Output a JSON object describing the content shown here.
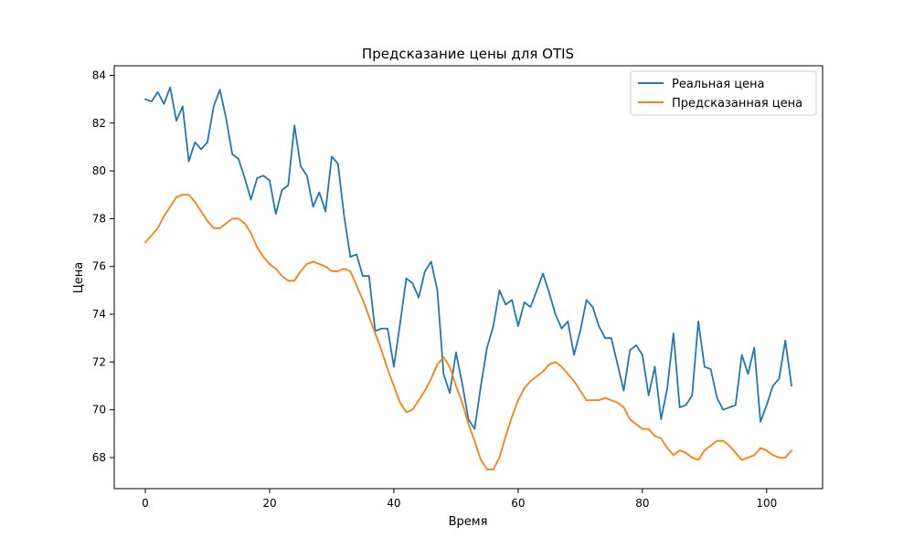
{
  "chart_data": {
    "type": "line",
    "title": "Предсказание цены для OTIS",
    "xlabel": "Время",
    "ylabel": "Цена",
    "xlim": [
      -5,
      109
    ],
    "ylim": [
      66.7,
      84.4
    ],
    "xticks": [
      0,
      20,
      40,
      60,
      80,
      100
    ],
    "yticks": [
      68,
      70,
      72,
      74,
      76,
      78,
      80,
      82,
      84
    ],
    "grid": false,
    "legend_position": "top-right",
    "series": [
      {
        "name": "Реальная цена",
        "color": "#1f77b4",
        "values": [
          83.0,
          82.9,
          83.3,
          82.8,
          83.5,
          82.1,
          82.7,
          80.4,
          81.2,
          80.9,
          81.2,
          82.7,
          83.4,
          82.2,
          80.7,
          80.5,
          79.7,
          78.8,
          79.7,
          79.8,
          79.6,
          78.2,
          79.2,
          79.4,
          81.9,
          80.2,
          79.8,
          78.5,
          79.1,
          78.3,
          80.6,
          80.3,
          78.1,
          76.4,
          76.5,
          75.6,
          75.6,
          73.3,
          73.4,
          73.4,
          71.8,
          73.6,
          75.5,
          75.3,
          74.7,
          75.8,
          76.2,
          75.0,
          71.5,
          70.7,
          72.4,
          71.1,
          69.6,
          69.2,
          71.0,
          72.6,
          73.5,
          75.0,
          74.4,
          74.6,
          73.5,
          74.5,
          74.3,
          75.0,
          75.7,
          74.9,
          74.0,
          73.4,
          73.7,
          72.3,
          73.3,
          74.6,
          74.3,
          73.5,
          73.0,
          73.0,
          71.9,
          70.8,
          72.5,
          72.7,
          72.3,
          70.6,
          71.8,
          69.6,
          70.9,
          73.2,
          70.1,
          70.2,
          70.6,
          73.7,
          71.8,
          71.7,
          70.5,
          70.0,
          70.1,
          70.2,
          72.3,
          71.5,
          72.6,
          69.5,
          70.2,
          71.0,
          71.3,
          72.9,
          71.0
        ]
      },
      {
        "name": "Предсказанная цена",
        "color": "#ff7f0e",
        "values": [
          77.0,
          77.3,
          77.6,
          78.1,
          78.5,
          78.9,
          79.0,
          79.0,
          78.7,
          78.3,
          77.9,
          77.6,
          77.6,
          77.8,
          78.0,
          78.0,
          77.8,
          77.4,
          76.8,
          76.4,
          76.1,
          75.9,
          75.6,
          75.4,
          75.4,
          75.8,
          76.1,
          76.2,
          76.1,
          76.0,
          75.8,
          75.8,
          75.9,
          75.8,
          75.2,
          74.6,
          73.9,
          73.2,
          72.5,
          71.7,
          71.0,
          70.3,
          69.9,
          70.0,
          70.4,
          70.8,
          71.3,
          71.9,
          72.2,
          71.8,
          71.0,
          70.3,
          69.4,
          68.7,
          67.9,
          67.5,
          67.5,
          68.0,
          68.9,
          69.7,
          70.4,
          70.9,
          71.2,
          71.4,
          71.6,
          71.9,
          72.0,
          71.8,
          71.5,
          71.2,
          70.8,
          70.4,
          70.4,
          70.4,
          70.5,
          70.4,
          70.3,
          70.1,
          69.6,
          69.4,
          69.2,
          69.2,
          68.9,
          68.8,
          68.4,
          68.1,
          68.3,
          68.2,
          68.0,
          67.9,
          68.3,
          68.5,
          68.7,
          68.7,
          68.5,
          68.2,
          67.9,
          68.0,
          68.1,
          68.4,
          68.3,
          68.1,
          68.0,
          68.0,
          68.3
        ]
      }
    ]
  }
}
